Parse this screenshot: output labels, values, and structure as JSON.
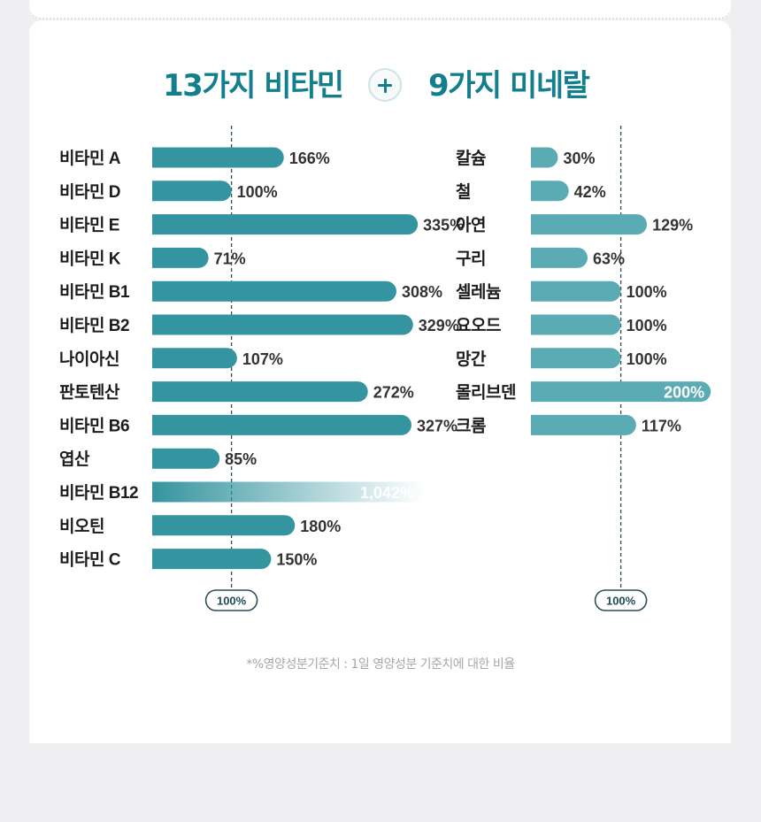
{
  "header": {
    "vitamin_title": "13가지 비타민",
    "plus_symbol": "+",
    "mineral_title": "9가지 미네랄"
  },
  "footnote": "*%영양성분기준치 : 1일 영양성분 기준치에 대한 비율",
  "colors": {
    "vitamin_bar": "#34949f",
    "mineral_bar": "#5babb4",
    "title": "#137f8c",
    "dash_line": "#2f4f55"
  },
  "chart_data": [
    {
      "type": "bar",
      "orientation": "horizontal",
      "reference_line": 100,
      "reference_label": "100%",
      "capped_at": 335,
      "categories": [
        "비타민 A",
        "비타민 D",
        "비타민 E",
        "비타민 K",
        "비타민 B1",
        "비타민 B2",
        "나이아신",
        "판토텐산",
        "비타민 B6",
        "엽산",
        "비타민 B12",
        "비오틴",
        "비타민 C"
      ],
      "values": [
        166,
        100,
        335,
        71,
        308,
        329,
        107,
        272,
        327,
        85,
        1042,
        180,
        150
      ],
      "value_labels": [
        "166%",
        "100%",
        "335%",
        "71%",
        "308%",
        "329%",
        "107%",
        "272%",
        "327%",
        "85%",
        "1,042%",
        "180%",
        "150%"
      ]
    },
    {
      "type": "bar",
      "orientation": "horizontal",
      "reference_line": 100,
      "reference_label": "100%",
      "capped_at": 200,
      "categories": [
        "칼슘",
        "철",
        "아연",
        "구리",
        "셀레늄",
        "요오드",
        "망간",
        "몰리브덴",
        "크롬"
      ],
      "values": [
        30,
        42,
        129,
        63,
        100,
        100,
        100,
        200,
        117
      ],
      "value_labels": [
        "30%",
        "42%",
        "129%",
        "63%",
        "100%",
        "100%",
        "100%",
        "200%",
        "117%"
      ]
    }
  ]
}
